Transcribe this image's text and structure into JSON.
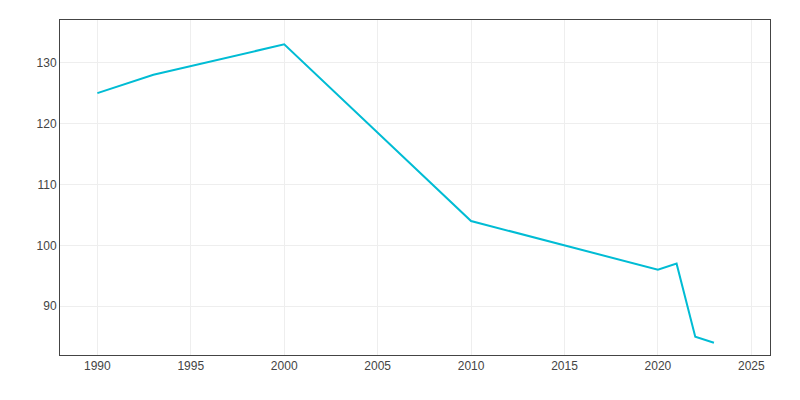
{
  "chart_data": {
    "type": "line",
    "x": [
      1990,
      1993,
      2000,
      2010,
      2020,
      2021,
      2022,
      2023
    ],
    "values": [
      125,
      128,
      133,
      104,
      96,
      97,
      85,
      84
    ],
    "color": "#00bcd4",
    "xlim": [
      1988,
      2026
    ],
    "xticks": [
      1990,
      1995,
      2000,
      2005,
      2010,
      2015,
      2020,
      2025
    ],
    "ylim": [
      82,
      137
    ],
    "yticks": [
      90,
      100,
      110,
      120,
      130
    ],
    "grid": true
  }
}
